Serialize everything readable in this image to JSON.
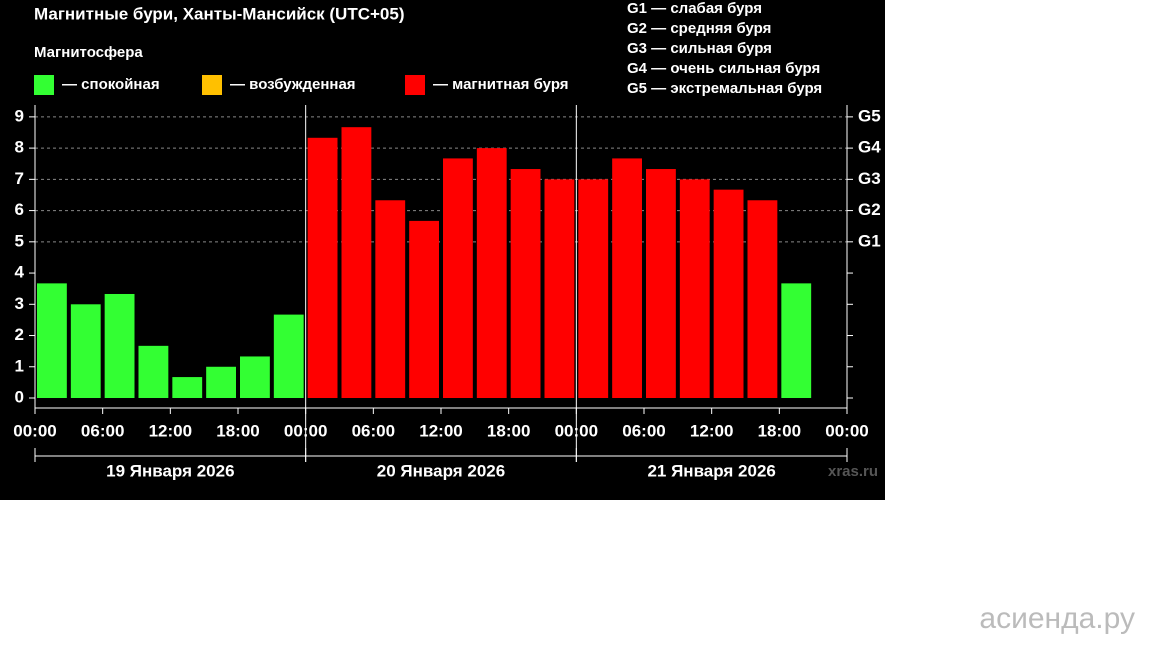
{
  "chart_data": {
    "type": "bar",
    "title": "Магнитные бури, Ханты-Мансийск (UTC+05)",
    "legend_title": "Магнитосфера",
    "legend": [
      {
        "name": "— спокойная",
        "color": "#33ff33"
      },
      {
        "name": "— возбужденная",
        "color": "#ffc000"
      },
      {
        "name": "— магнитная буря",
        "color": "#ff0000"
      }
    ],
    "scale_legend": [
      "G1 — слабая буря",
      "G2 — средняя буря",
      "G3 — сильная буря",
      "G4 — очень сильная буря",
      "G5 — экстремальная буря"
    ],
    "x": [
      0,
      3,
      6,
      9,
      12,
      15,
      18,
      21,
      24,
      27,
      30,
      33,
      36,
      39,
      42,
      45,
      48,
      51,
      54,
      57,
      60,
      63,
      66,
      69
    ],
    "values": [
      3.67,
      3,
      3.33,
      1.67,
      0.67,
      1,
      1.33,
      2.67,
      8.33,
      8.67,
      6.33,
      5.67,
      7.67,
      8,
      7.33,
      7,
      7,
      7.67,
      7.33,
      7,
      6.67,
      6.33,
      3.67,
      null
    ],
    "colors": [
      "#33ff33",
      "#33ff33",
      "#33ff33",
      "#33ff33",
      "#33ff33",
      "#33ff33",
      "#33ff33",
      "#33ff33",
      "#ff0000",
      "#ff0000",
      "#ff0000",
      "#ff0000",
      "#ff0000",
      "#ff0000",
      "#ff0000",
      "#ff0000",
      "#ff0000",
      "#ff0000",
      "#ff0000",
      "#ff0000",
      "#ff0000",
      "#ff0000",
      "#33ff33",
      null
    ],
    "xlim": [
      0,
      72
    ],
    "xticks": [
      {
        "value": 0,
        "label": "00:00"
      },
      {
        "value": 6,
        "label": "06:00"
      },
      {
        "value": 12,
        "label": "12:00"
      },
      {
        "value": 18,
        "label": "18:00"
      },
      {
        "value": 24,
        "label": "00:00"
      },
      {
        "value": 30,
        "label": "06:00"
      },
      {
        "value": 36,
        "label": "12:00"
      },
      {
        "value": 42,
        "label": "18:00"
      },
      {
        "value": 48,
        "label": "00:00"
      },
      {
        "value": 54,
        "label": "06:00"
      },
      {
        "value": 60,
        "label": "12:00"
      },
      {
        "value": 66,
        "label": "18:00"
      },
      {
        "value": 72,
        "label": "00:00"
      }
    ],
    "dates": [
      "19 Января 2026",
      "20 Января 2026",
      "21 Января 2026"
    ],
    "ylim": [
      -0.32,
      9.38
    ],
    "yticks": [
      0,
      1,
      2,
      3,
      4,
      5,
      6,
      7,
      8,
      9
    ],
    "y2lim": [
      -0.32,
      9.38
    ],
    "y2ticks": [
      {
        "value": 5,
        "label": "G1"
      },
      {
        "value": 6,
        "label": "G2"
      },
      {
        "value": 7,
        "label": "G3"
      },
      {
        "value": 8,
        "label": "G4"
      },
      {
        "value": 9,
        "label": "G5"
      }
    ],
    "grid": true,
    "source": "xras.ru"
  },
  "watermark": "асиенда.ру"
}
